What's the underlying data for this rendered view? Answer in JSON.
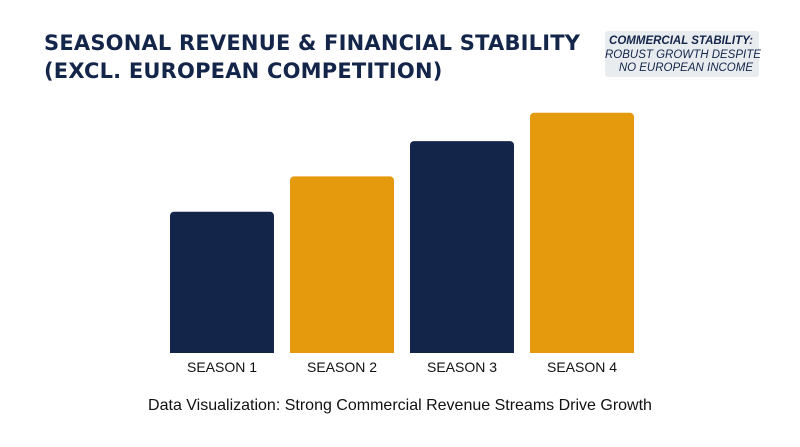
{
  "header": {
    "title_line1": "SEASONAL REVENUE & FINANCIAL STABILITY",
    "title_line2": "(EXCL. EUROPEAN COMPETITION)"
  },
  "callout": {
    "heading": "COMMERCIAL STABILITY:",
    "line1": "ROBUST GROWTH DESPITE",
    "line2": "NO EUROPEAN INCOME"
  },
  "caption": "Data Visualization: Strong Commercial Revenue Streams Drive Growth",
  "chart_data": {
    "type": "bar",
    "categories": [
      "SEASON 1",
      "SEASON 2",
      "SEASON 3",
      "SEASON 4"
    ],
    "values": [
      60,
      75,
      90,
      102
    ],
    "ylim": [
      0,
      110
    ],
    "grid": false,
    "legend": "none",
    "bar_colors": [
      "#14254a",
      "#e59a0e",
      "#14254a",
      "#e59a0e"
    ]
  }
}
